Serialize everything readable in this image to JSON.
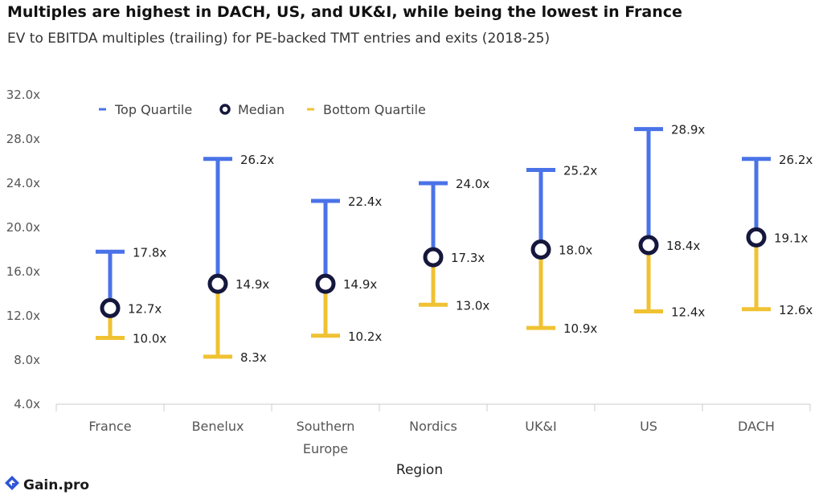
{
  "title": "Multiples are highest in DACH, US, and UK&I, while being the lowest in France",
  "subtitle": "EV to EBITDA multiples (trailing) for PE-backed TMT entries and exits (2018-25)",
  "brand": "Gain.pro",
  "colors": {
    "top": "#4a73e8",
    "bottom": "#f0c232",
    "median_stroke": "#15173d",
    "median_fill": "#ffffff",
    "axis": "#cccccc"
  },
  "chart_data": {
    "type": "range",
    "xlabel": "Region",
    "ylabel": "",
    "ylim": [
      4,
      32
    ],
    "yticks": [
      "4.0x",
      "8.0x",
      "12.0x",
      "16.0x",
      "20.0x",
      "24.0x",
      "28.0x",
      "32.0x"
    ],
    "legend": {
      "placement": "top-left",
      "items": [
        {
          "name": "Top Quartile",
          "marker": "bar-top"
        },
        {
          "name": "Median",
          "marker": "circle"
        },
        {
          "name": "Bottom Quartile",
          "marker": "bar-bottom"
        }
      ]
    },
    "categories": [
      {
        "name": "France",
        "label_lines": [
          "France"
        ]
      },
      {
        "name": "Benelux",
        "label_lines": [
          "Benelux"
        ]
      },
      {
        "name": "Southern Europe",
        "label_lines": [
          "Southern",
          "Europe"
        ]
      },
      {
        "name": "Nordics",
        "label_lines": [
          "Nordics"
        ]
      },
      {
        "name": "UK&I",
        "label_lines": [
          "UK&I"
        ]
      },
      {
        "name": "US",
        "label_lines": [
          "US"
        ]
      },
      {
        "name": "DACH",
        "label_lines": [
          "DACH"
        ]
      }
    ],
    "series": [
      {
        "name": "Top Quartile",
        "values": [
          17.8,
          26.2,
          22.4,
          24.0,
          25.2,
          28.9,
          26.2
        ],
        "labels": [
          "17.8x",
          "26.2x",
          "22.4x",
          "24.0x",
          "25.2x",
          "28.9x",
          "26.2x"
        ]
      },
      {
        "name": "Median",
        "values": [
          12.7,
          14.9,
          14.9,
          17.3,
          18.0,
          18.4,
          19.1
        ],
        "labels": [
          "12.7x",
          "14.9x",
          "14.9x",
          "17.3x",
          "18.0x",
          "18.4x",
          "19.1x"
        ]
      },
      {
        "name": "Bottom Quartile",
        "values": [
          10.0,
          8.3,
          10.2,
          13.0,
          10.9,
          12.4,
          12.6
        ],
        "labels": [
          "10.0x",
          "8.3x",
          "10.2x",
          "13.0x",
          "10.9x",
          "12.4x",
          "12.6x"
        ]
      }
    ]
  }
}
